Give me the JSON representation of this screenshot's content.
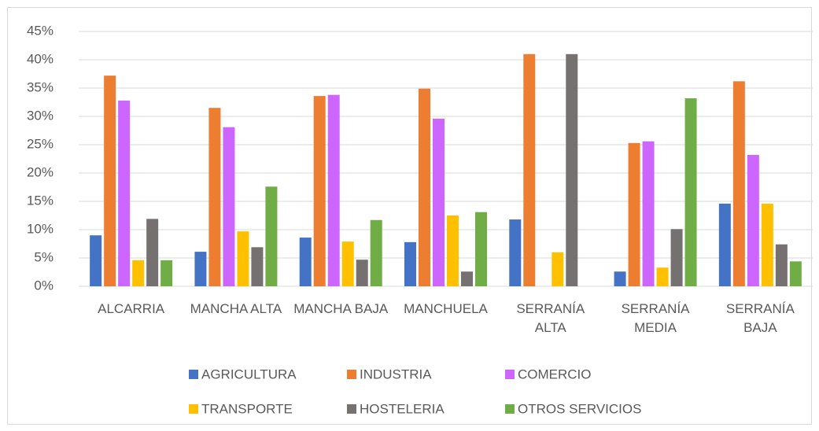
{
  "chart_data": {
    "type": "bar",
    "categories": [
      "ALCARRIA",
      "MANCHA ALTA",
      "MANCHA BAJA",
      "MANCHUELA",
      "SERRANÍA ALTA",
      "SERRANÍA MEDIA",
      "SERRANÍA BAJA"
    ],
    "series": [
      {
        "name": "AGRICULTURA",
        "color": "#4472c4",
        "values": [
          9.0,
          6.1,
          8.6,
          7.8,
          11.8,
          2.6,
          14.6
        ]
      },
      {
        "name": "INDUSTRIA",
        "color": "#ed7d31",
        "values": [
          37.2,
          31.5,
          33.6,
          34.9,
          41.0,
          25.3,
          36.2
        ]
      },
      {
        "name": "COMERCIO",
        "color": "#cc66ff",
        "values": [
          32.8,
          28.1,
          33.8,
          29.6,
          0,
          25.6,
          23.2
        ]
      },
      {
        "name": "TRANSPORTE",
        "color": "#ffc000",
        "values": [
          4.6,
          9.7,
          7.9,
          12.5,
          6.0,
          3.3,
          14.6
        ]
      },
      {
        "name": "HOSTELERIA",
        "color": "#767171",
        "values": [
          11.9,
          6.9,
          4.7,
          2.6,
          41.0,
          10.1,
          7.4
        ]
      },
      {
        "name": "OTROS SERVICIOS",
        "color": "#70ad47",
        "values": [
          4.6,
          17.6,
          11.7,
          13.1,
          0,
          33.2,
          4.4
        ]
      }
    ],
    "ylim": [
      0,
      45
    ],
    "yticks": [
      {
        "value": 0,
        "label": "0%"
      },
      {
        "value": 5,
        "label": "5%"
      },
      {
        "value": 10,
        "label": "10%"
      },
      {
        "value": 15,
        "label": "15%"
      },
      {
        "value": 20,
        "label": "20%"
      },
      {
        "value": 25,
        "label": "25%"
      },
      {
        "value": 30,
        "label": "30%"
      },
      {
        "value": 35,
        "label": "35%"
      },
      {
        "value": 40,
        "label": "40%"
      },
      {
        "value": 45,
        "label": "45%"
      }
    ],
    "grid": true,
    "legend": "bottom"
  }
}
